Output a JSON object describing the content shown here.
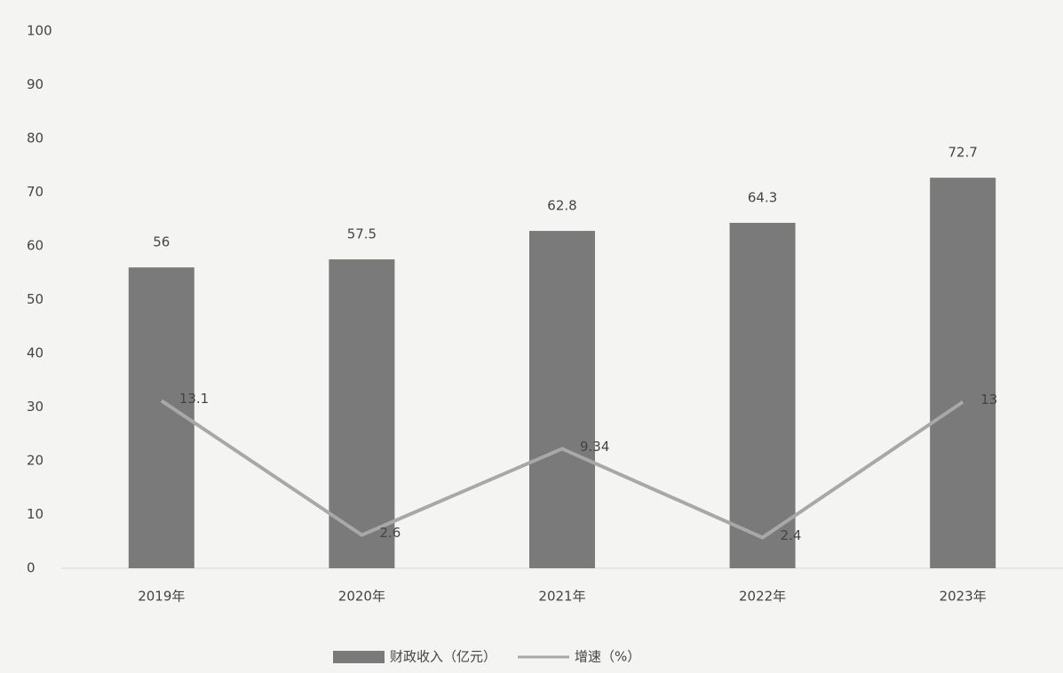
{
  "chart_data": {
    "type": "bar-line",
    "categories": [
      "2019年",
      "2020年",
      "2021年",
      "2022年",
      "2023年"
    ],
    "series": [
      {
        "name": "财政收入（亿元）",
        "type": "bar",
        "color": "#7a7a7a",
        "values": [
          56,
          57.5,
          62.8,
          64.3,
          72.7
        ]
      },
      {
        "name": "增速（%）",
        "type": "line",
        "color": "#a8a8a8",
        "axis": "y2",
        "values": [
          13.1,
          2.6,
          9.34,
          2.4,
          13
        ]
      }
    ],
    "ylim": [
      0,
      100
    ],
    "yticks": [
      0,
      10,
      20,
      30,
      40,
      50,
      60,
      70,
      80,
      90,
      100
    ],
    "y2lim": [
      0,
      42
    ],
    "grid": false,
    "legend": "bottom"
  }
}
